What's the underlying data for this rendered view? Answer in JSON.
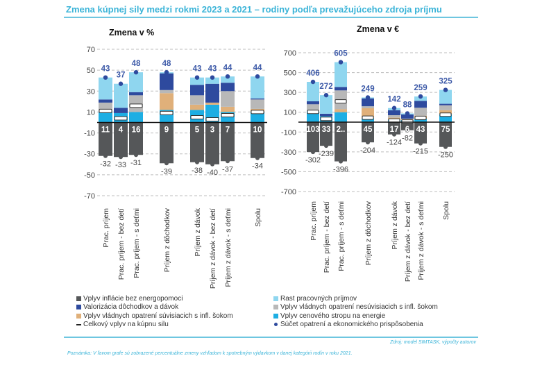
{
  "header": {
    "title": "Zmena kúpnej sily medzi rokmi 2023 a 2021 – rodiny podľa prevažujúceho zdroja príjmu"
  },
  "colors": {
    "inflation": "#555759",
    "valorization": "#2e4a9e",
    "gov_infl": "#e0b07a",
    "wage_growth": "#8fd6ef",
    "gov_non_infl": "#b8b8b8",
    "energy_cap": "#1eaee3",
    "total_marker": "#ffffff",
    "sum_dot": "#2e4a9e",
    "accent": "#3bb4d8"
  },
  "chart_data": [
    {
      "type": "bar",
      "stacked": true,
      "title": "Zmena v %",
      "ylabel": "",
      "xlabel": "",
      "ylim": [
        -70,
        70
      ],
      "yticks": [
        70,
        50,
        30,
        10,
        -10,
        -30,
        -50,
        -70
      ],
      "grid": true,
      "categories": [
        "Prac. príjem",
        "Prac. príjem - bez detí",
        "Prac. príjem - s deťmi",
        "Príjem z dôchodkov",
        "Príjem z dávok",
        "Príjem z dávok - bez detí",
        "Príjem z dávok - s deťmi",
        "Spolu"
      ],
      "groups": [
        [
          0,
          1,
          2
        ],
        [
          3
        ],
        [
          4,
          5,
          6
        ],
        [
          7
        ]
      ],
      "series": [
        {
          "key": "inflation",
          "name": "Vplyv inflácie bez energopomoci",
          "values": [
            -32,
            -33,
            -31,
            -39,
            -38,
            -40,
            -37,
            -34
          ]
        },
        {
          "key": "energy_cap",
          "name": "Vplyv cenového stropu na energie",
          "values": [
            10,
            9,
            10,
            12,
            12,
            17,
            10,
            10
          ]
        },
        {
          "key": "gov_infl",
          "name": "Vplyv vládnych opatrení súvisiacich s infl. šokom",
          "values": [
            0,
            0,
            0,
            16,
            5,
            2,
            5,
            3
          ]
        },
        {
          "key": "gov_non_infl",
          "name": "Vplyv vládnych opatrení nesúvisiacich s infl. šokom",
          "values": [
            9,
            0,
            16,
            3,
            9,
            0,
            15,
            9
          ]
        },
        {
          "key": "valorization",
          "name": "Valorizácia dôchodkov a dávok",
          "values": [
            3,
            5,
            3,
            16,
            10,
            18,
            8,
            1
          ]
        },
        {
          "key": "wage_growth",
          "name": "Rast pracovných príjmov",
          "values": [
            21,
            23,
            19,
            1,
            7,
            6,
            6,
            21
          ]
        }
      ],
      "sum_labels": [
        43,
        37,
        48,
        48,
        43,
        43,
        44,
        44
      ],
      "negative_labels": [
        -32,
        -33,
        -31,
        -39,
        -38,
        -40,
        -37,
        -34
      ],
      "total_effect": [
        11,
        4,
        16,
        9,
        5,
        3,
        7,
        10
      ],
      "total_labels": [
        "11",
        "4",
        "16",
        "9",
        "5",
        "3",
        "7",
        "10"
      ]
    },
    {
      "type": "bar",
      "stacked": true,
      "title": "Zmena v €",
      "ylabel": "",
      "xlabel": "",
      "ylim": [
        -700,
        700
      ],
      "yticks": [
        700,
        500,
        300,
        100,
        -100,
        -300,
        -500,
        -700
      ],
      "grid": true,
      "categories": [
        "Prac. príjem",
        "Prac. príjem - bez detí",
        "Prac. príjem - s deťmi",
        "Príjem z dôchodkov",
        "Príjem z dávok",
        "Príjem z dávok - bez detí",
        "Príjem z dávok - s deťmi",
        "Spolu"
      ],
      "groups": [
        [
          0,
          1,
          2
        ],
        [
          3
        ],
        [
          4,
          5,
          6
        ],
        [
          7
        ]
      ],
      "series": [
        {
          "key": "inflation",
          "name": "Vplyv inflácie bez energopomoci",
          "values": [
            -302,
            -239,
            -396,
            -204,
            -124,
            -82,
            -215,
            -250
          ]
        },
        {
          "key": "energy_cap",
          "name": "Vplyv cenového stropu na energie",
          "values": [
            110,
            60,
            100,
            40,
            25,
            20,
            35,
            80
          ]
        },
        {
          "key": "gov_infl",
          "name": "Vplyv vládnych opatrení súvisiacich s infl. šokom",
          "values": [
            0,
            0,
            30,
            100,
            20,
            10,
            30,
            40
          ]
        },
        {
          "key": "gov_non_infl",
          "name": "Vplyv vládnych opatrení nesúvisiacich s infl. šokom",
          "values": [
            70,
            0,
            190,
            20,
            25,
            5,
            80,
            50
          ]
        },
        {
          "key": "valorization",
          "name": "Valorizácia dôchodkov a dávok",
          "values": [
            30,
            25,
            35,
            80,
            50,
            43,
            70,
            15
          ]
        },
        {
          "key": "wage_growth",
          "name": "Rast pracovných príjmov",
          "values": [
            196,
            187,
            250,
            9,
            22,
            10,
            44,
            140
          ]
        }
      ],
      "sum_labels": [
        406,
        272,
        605,
        249,
        142,
        88,
        259,
        325
      ],
      "negative_labels": [
        -302,
        -239,
        -396,
        -204,
        -124,
        -82,
        -215,
        -250
      ],
      "total_effect": [
        103,
        33,
        209,
        45,
        17,
        6,
        43,
        75
      ],
      "total_labels": [
        "103",
        "33",
        "2..",
        "45",
        "17",
        "6",
        "43",
        "75"
      ]
    }
  ],
  "legend": {
    "left": [
      {
        "key": "inflation",
        "label": "Vplyv inflácie bez energopomoci",
        "type": "square"
      },
      {
        "key": "valorization",
        "label": "Valorizácia dôchodkov a dávok",
        "type": "square"
      },
      {
        "key": "gov_infl",
        "label": "Vplyv vládnych opatrení súvisiacich s infl. šokom",
        "type": "square"
      },
      {
        "key": "total",
        "label": "Celkový vplyv na kúpnu silu",
        "type": "line"
      }
    ],
    "right": [
      {
        "key": "wage_growth",
        "label": "Rast pracovných príjmov",
        "type": "square"
      },
      {
        "key": "gov_non_infl",
        "label": "Vplyv vládnych opatrení nesúvisiacich s infl. šokom",
        "type": "square"
      },
      {
        "key": "energy_cap",
        "label": "Vplyv cenového stropu na energie",
        "type": "square"
      },
      {
        "key": "sum",
        "label": "Súčet opatrení a ekonomického prispôsobenia",
        "type": "dot"
      }
    ]
  },
  "footer": {
    "source": "Zdroj: model SIMTASK, výpočty autorov",
    "note": "Poznámka: V ľavom grafe sú zobrazené percentuálne zmeny vzhľadom k spotrebným výdavkom v danej kategórii rodín v roku 2021."
  }
}
